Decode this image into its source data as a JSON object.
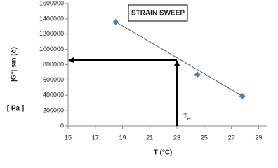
{
  "chart_data": {
    "type": "scatter",
    "title": "STRAIN SWEEP",
    "y_label": "|G*| sin (δ)",
    "y_unit": "[ Pa ]",
    "x_label": "T (°C)",
    "series": [
      {
        "name": "strain sweep",
        "color": "#4f81bd",
        "x": [
          18.5,
          24.5,
          27.8
        ],
        "values": [
          1360000,
          670000,
          390000
        ]
      }
    ],
    "trendline": {
      "color": "#555555",
      "x": [
        18.5,
        27.8
      ],
      "values": [
        1360000,
        390000
      ]
    },
    "annotation": {
      "text": "T",
      "subscript": "e",
      "x": 23,
      "y": 860000
    },
    "xlim": [
      15,
      29.6
    ],
    "ylim": [
      0,
      1600000
    ],
    "xticks": [
      15,
      17,
      19,
      21,
      23,
      25,
      27,
      29
    ],
    "yticks": [
      0,
      200000,
      400000,
      600000,
      800000,
      1000000,
      1200000,
      1400000,
      1600000
    ]
  }
}
